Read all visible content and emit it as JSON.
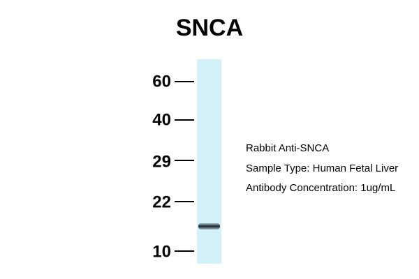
{
  "title": "SNCA",
  "markers": [
    "60",
    "40",
    "29",
    "22",
    "10"
  ],
  "annotations": [
    "Rabbit Anti-SNCA",
    "Sample Type: Human Fetal Liver",
    "Antibody Concentration: 1ug/mL"
  ]
}
